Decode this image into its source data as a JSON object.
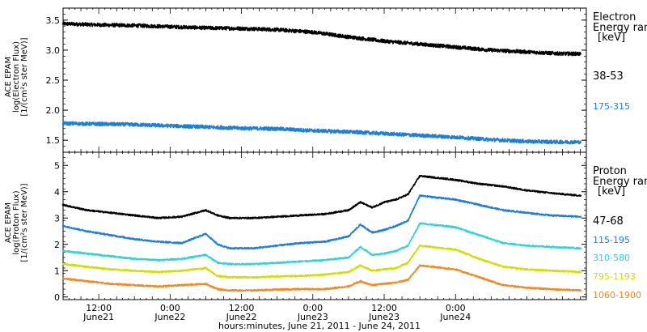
{
  "chart_data": [
    {
      "type": "scatter",
      "panel": "electron",
      "ylabel_lines": [
        "ACE EPAM",
        "log(Electron Flux)",
        "[1/(cm²s ster MeV)]"
      ],
      "ylim": [
        1.3,
        3.7
      ],
      "yticks": [
        1.5,
        2.0,
        2.5,
        3.0,
        3.5
      ],
      "ytick_labels": [
        "1.5",
        "2.0",
        "2.5",
        "3.0",
        "3.5"
      ],
      "legend": {
        "title_lines": [
          "Electron",
          "Energy ranges",
          "[keV]"
        ],
        "entries": [
          "38-53",
          "175-315"
        ]
      },
      "series": [
        {
          "name": "38-53",
          "color": "#000000",
          "x_hours": [
            0,
            6,
            12,
            18,
            24,
            30,
            36,
            42,
            48,
            54,
            60,
            66,
            72,
            78,
            84,
            87
          ],
          "values": [
            3.44,
            3.42,
            3.41,
            3.39,
            3.37,
            3.36,
            3.34,
            3.3,
            3.22,
            3.15,
            3.1,
            3.05,
            3.0,
            2.97,
            2.94,
            2.94
          ]
        },
        {
          "name": "175-315",
          "color": "#1e7fd8",
          "x_hours": [
            0,
            6,
            12,
            18,
            24,
            30,
            36,
            42,
            48,
            54,
            60,
            66,
            72,
            78,
            84,
            87
          ],
          "values": [
            1.78,
            1.77,
            1.76,
            1.74,
            1.72,
            1.7,
            1.69,
            1.66,
            1.64,
            1.61,
            1.58,
            1.55,
            1.51,
            1.48,
            1.47,
            1.47
          ]
        }
      ]
    },
    {
      "type": "scatter",
      "panel": "proton",
      "ylabel_lines": [
        "ACE EPAM",
        "log(Proton Flux)",
        "[1/(cm²s ster MeV)]"
      ],
      "ylim": [
        -0.1,
        5.5
      ],
      "yticks": [
        0,
        1,
        2,
        3,
        4,
        5
      ],
      "ytick_labels": [
        "0",
        "1",
        "2",
        "3",
        "4",
        "5"
      ],
      "legend": {
        "title_lines": [
          "Proton",
          "Energy ranges",
          "[keV]"
        ],
        "entries": [
          "47-68",
          "115-195",
          "310-580",
          "795-1193",
          "1060-1900"
        ]
      },
      "series": [
        {
          "name": "47-68",
          "color": "#000000",
          "x_hours": [
            0,
            4,
            8,
            12,
            16,
            20,
            24,
            26,
            28,
            32,
            36,
            40,
            44,
            48,
            50,
            52,
            54,
            56,
            58,
            60,
            62,
            66,
            70,
            74,
            78,
            82,
            87
          ],
          "values": [
            3.5,
            3.3,
            3.2,
            3.1,
            3.0,
            3.05,
            3.3,
            3.1,
            3.0,
            3.0,
            3.05,
            3.1,
            3.15,
            3.3,
            3.6,
            3.4,
            3.6,
            3.7,
            3.9,
            4.6,
            4.55,
            4.45,
            4.3,
            4.2,
            4.05,
            3.95,
            3.85
          ]
        },
        {
          "name": "115-195",
          "color": "#1e7fd8",
          "x_hours": [
            0,
            4,
            8,
            12,
            16,
            20,
            24,
            26,
            28,
            32,
            36,
            40,
            44,
            48,
            50,
            52,
            54,
            56,
            58,
            60,
            62,
            66,
            70,
            74,
            78,
            82,
            87
          ],
          "values": [
            2.7,
            2.5,
            2.35,
            2.2,
            2.1,
            2.05,
            2.4,
            2.0,
            1.85,
            1.85,
            1.95,
            2.05,
            2.1,
            2.3,
            2.75,
            2.45,
            2.55,
            2.7,
            2.9,
            3.85,
            3.8,
            3.7,
            3.5,
            3.3,
            3.2,
            3.1,
            3.05
          ]
        },
        {
          "name": "310-580",
          "color": "#33d3d3",
          "x_hours": [
            0,
            4,
            8,
            12,
            16,
            20,
            24,
            26,
            28,
            32,
            36,
            40,
            44,
            48,
            50,
            52,
            54,
            56,
            58,
            60,
            62,
            66,
            70,
            74,
            78,
            82,
            87
          ],
          "values": [
            1.75,
            1.65,
            1.55,
            1.45,
            1.4,
            1.45,
            1.6,
            1.3,
            1.25,
            1.25,
            1.3,
            1.35,
            1.4,
            1.5,
            1.9,
            1.6,
            1.65,
            1.75,
            1.95,
            2.8,
            2.75,
            2.65,
            2.35,
            2.05,
            1.95,
            1.9,
            1.85
          ]
        },
        {
          "name": "795-1193",
          "color": "#cde000",
          "x_hours": [
            0,
            4,
            8,
            12,
            16,
            20,
            24,
            26,
            28,
            32,
            36,
            40,
            44,
            48,
            50,
            52,
            54,
            56,
            58,
            60,
            62,
            66,
            70,
            74,
            78,
            82,
            87
          ],
          "values": [
            1.25,
            1.15,
            1.05,
            1.0,
            0.95,
            1.0,
            1.1,
            0.8,
            0.75,
            0.75,
            0.78,
            0.8,
            0.85,
            0.95,
            1.2,
            1.0,
            1.05,
            1.1,
            1.3,
            1.95,
            1.9,
            1.8,
            1.45,
            1.15,
            1.05,
            1.0,
            0.95
          ]
        },
        {
          "name": "1060-1900",
          "color": "#f08a24",
          "x_hours": [
            0,
            4,
            8,
            12,
            16,
            20,
            24,
            26,
            28,
            32,
            36,
            40,
            44,
            48,
            50,
            52,
            54,
            56,
            58,
            60,
            62,
            66,
            70,
            74,
            78,
            82,
            87
          ],
          "values": [
            0.7,
            0.6,
            0.5,
            0.45,
            0.4,
            0.45,
            0.5,
            0.3,
            0.25,
            0.25,
            0.28,
            0.3,
            0.3,
            0.4,
            0.6,
            0.45,
            0.5,
            0.55,
            0.65,
            1.2,
            1.15,
            1.05,
            0.75,
            0.45,
            0.35,
            0.3,
            0.25
          ]
        }
      ]
    }
  ],
  "xaxis": {
    "xlim_hours": [
      0,
      88
    ],
    "major_ticks": [
      {
        "hours": 6,
        "time": "12:00",
        "date": "June21"
      },
      {
        "hours": 18,
        "time": "0:00",
        "date": "June22"
      },
      {
        "hours": 30,
        "time": "12:00",
        "date": "June22"
      },
      {
        "hours": 42,
        "time": "0:00",
        "date": "June23"
      },
      {
        "hours": 54,
        "time": "12:00",
        "date": "June23"
      },
      {
        "hours": 66,
        "time": "0:00",
        "date": "June24"
      }
    ],
    "title": "hours:minutes, June 21, 2011 - June 24, 2011"
  }
}
